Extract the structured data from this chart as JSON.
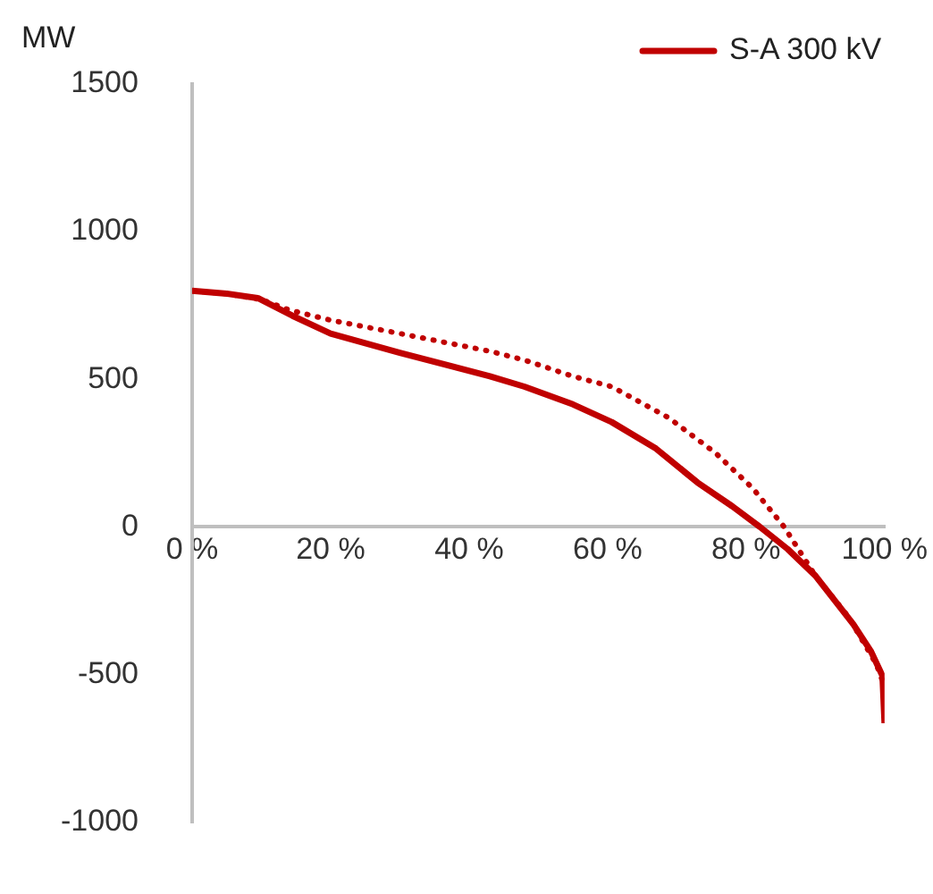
{
  "chart_data": {
    "type": "line",
    "ylabel": "MW",
    "xlim": [
      0,
      100
    ],
    "ylim": [
      -1000,
      1500
    ],
    "xticks": [
      {
        "value": 0,
        "label": "0 %"
      },
      {
        "value": 20,
        "label": "20 %"
      },
      {
        "value": 40,
        "label": "40 %"
      },
      {
        "value": 60,
        "label": "60 %"
      },
      {
        "value": 80,
        "label": "80 %"
      },
      {
        "value": 100,
        "label": "100 %"
      }
    ],
    "yticks": [
      -1000,
      -500,
      0,
      500,
      1000,
      1500
    ],
    "grid": false,
    "legend": "top right",
    "marker": "none",
    "series": [
      {
        "name": "S-A 300 kV",
        "color": "#c00000",
        "line_style": "solid",
        "x": [
          0,
          5,
          9.5,
          14.5,
          20,
          30,
          43,
          48,
          55,
          60.6,
          67,
          73,
          78,
          82,
          86,
          90,
          95.5,
          98,
          99.7,
          100
        ],
        "values": [
          800,
          790,
          775,
          715,
          655,
          590,
          510,
          475,
          415,
          355,
          265,
          150,
          70,
          0,
          -75,
          -165,
          -330,
          -420,
          -505,
          -665
        ]
      },
      {
        "color": "#c00000",
        "line_style": "dotted",
        "x": [
          0,
          5,
          10,
          14,
          20,
          30,
          43,
          48,
          55,
          60.6,
          68.8,
          75.6,
          81,
          85.5,
          90,
          94.8,
          98.8,
          100
        ],
        "values": [
          800,
          790,
          770,
          735,
          700,
          655,
          595,
          565,
          510,
          475,
          370,
          250,
          130,
          0,
          -165,
          -305,
          -465,
          -540
        ]
      }
    ]
  }
}
